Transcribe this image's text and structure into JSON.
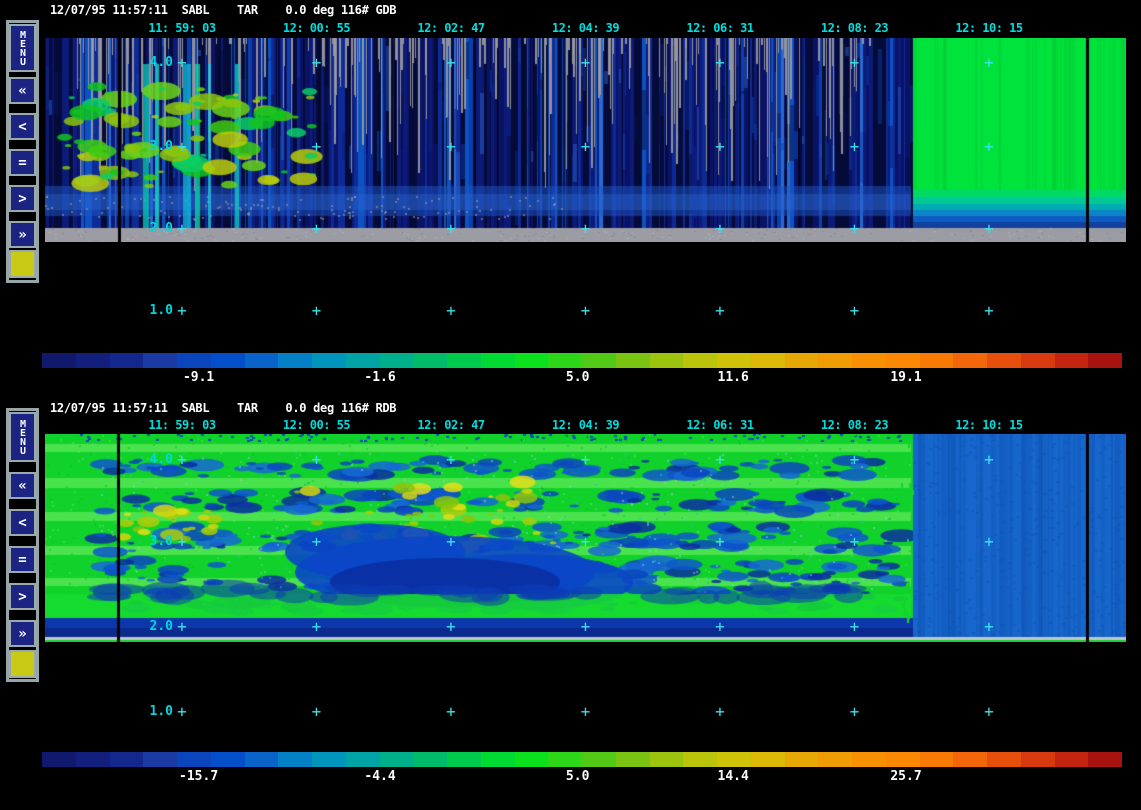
{
  "app": {
    "background": "#000000"
  },
  "colors": {
    "header_text": "#ffffff",
    "axis_text": "#00dede",
    "plus_mark": "#3ce2ea",
    "toolbar_frame": "#96a5a8",
    "toolbar_button": "#1b2383"
  },
  "sidebar": {
    "menu_label": "MENU",
    "buttons": [
      {
        "name": "fast-rewind",
        "glyph": "«"
      },
      {
        "name": "step-back",
        "glyph": "<"
      },
      {
        "name": "pause",
        "glyph": "="
      },
      {
        "name": "step-forward",
        "glyph": ">"
      },
      {
        "name": "fast-forward",
        "glyph": "»"
      }
    ],
    "swatch_color": "#c8ca16"
  },
  "palette": [
    "#10196e",
    "#131f7d",
    "#14278c",
    "#1b3aa4",
    "#0a45bd",
    "#034fca",
    "#0a63c8",
    "#0480c6",
    "#0095bd",
    "#00a4a4",
    "#00b08b",
    "#00bc6a",
    "#00ca4e",
    "#00da33",
    "#0ce11e",
    "#2ed61a",
    "#53c917",
    "#7ac313",
    "#9cc40f",
    "#b9c40b",
    "#cfc309",
    "#dcb807",
    "#e7a705",
    "#f09c04",
    "#f79103",
    "#fb8702",
    "#f87a05",
    "#f36609",
    "#e74f0d",
    "#d8390f",
    "#c42511",
    "#a81310"
  ],
  "panels": [
    {
      "id": "GDB",
      "header": "12/07/95 11:57:11  SABL    TAR    0.0 deg 116# GDB",
      "times": [
        "11: 59: 03",
        "12: 00: 55",
        "12: 02: 47",
        "12: 04: 39",
        "12: 06: 31",
        "12: 08: 23",
        "12: 10: 15"
      ],
      "altitudes": [
        "4.0",
        "3.0",
        "2.0",
        "1.0"
      ],
      "colorbar_labels": [
        "-9.1",
        "-1.6",
        "5.0",
        "11.6",
        "19.1"
      ],
      "image_colors": {
        "base_blues": [
          "#050b38",
          "#0a1266",
          "#0c1a78",
          "#0e2a96",
          "#0b3fae",
          "#0d52c2",
          "#2a6ad0",
          "#071048"
        ],
        "gray_spike": "#9a9aa0",
        "green_blobs": [
          "#12c41e",
          "#3ecb12",
          "#8cc40e",
          "#bccc0a",
          "#0ccc66",
          "#6ad416"
        ],
        "right_fill": "#00e23c",
        "ground": "#9c9ca4"
      }
    },
    {
      "id": "RDB",
      "header": "12/07/95 11:57:11  SABL    TAR    0.0 deg 116# RDB",
      "times": [
        "11: 59: 03",
        "12: 00: 55",
        "12: 02: 47",
        "12: 04: 39",
        "12: 06: 31",
        "12: 08: 23",
        "12: 10: 15"
      ],
      "altitudes": [
        "4.0",
        "3.0",
        "2.0",
        "1.0"
      ],
      "colorbar_labels": [
        "-15.7",
        "-4.4",
        "5.0",
        "14.4",
        "25.7"
      ],
      "image_colors": {
        "background": "#10d22a",
        "blues": [
          "#0b46c0",
          "#0a2ea0",
          "#0e56cc",
          "#1668d4"
        ],
        "yellows": [
          "#d6d60e",
          "#accc0a",
          "#e4de18",
          "#8cc40c"
        ],
        "right_fill": "#1766cc",
        "ground_line": "#c2c4cc"
      }
    }
  ]
}
